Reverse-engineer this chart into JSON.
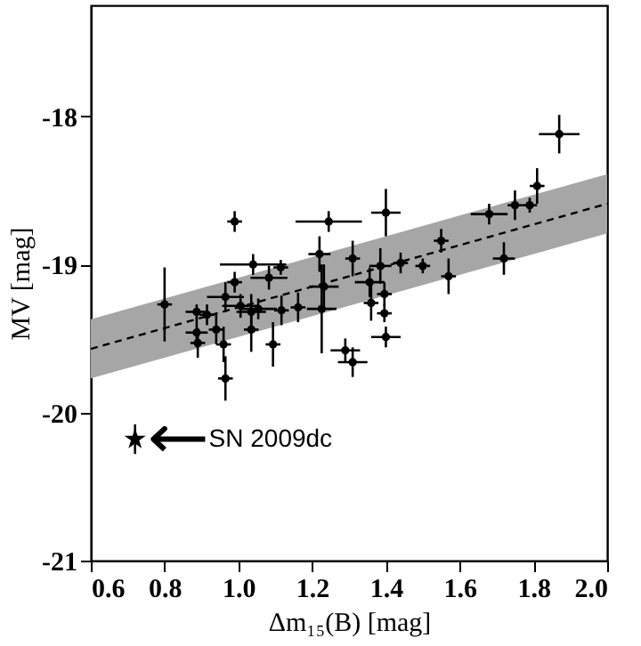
{
  "chart_data": {
    "type": "scatter",
    "xlabel": "Δm₁₅(B) [mag]",
    "ylabel": "MV [mag]",
    "xlim": [
      0.6,
      2.0
    ],
    "xticks": [
      0.6,
      0.8,
      {
        "value": 1,
        "label": "1.0"
      },
      1.2,
      1.4,
      1.6,
      1.8,
      {
        "value": 2,
        "label": "2.0"
      }
    ],
    "ylim": [
      -21,
      -17.25
    ],
    "yticks": [
      -21,
      -20,
      -19,
      -18
    ],
    "grid": false,
    "series": [
      {
        "type": "line",
        "color": "#000000",
        "line_style": "dashed",
        "marker": "none",
        "x": [
          0.6,
          2.0
        ],
        "values": [
          -19.57,
          -18.59
        ],
        "lower": [
          -19.77,
          -18.79
        ],
        "upper": [
          -19.37,
          -18.39
        ]
      },
      {
        "color": "#000000",
        "marker": "circle",
        "x": [
          1.87,
          1.81,
          1.75,
          1.79,
          1.68,
          1.72,
          1.55,
          1.57,
          1.5,
          1.44,
          1.4,
          1.245,
          0.99,
          1.385,
          1.22,
          1.31,
          1.04,
          1.115,
          0.8,
          0.887,
          0.915,
          0.887,
          0.89,
          0.94,
          0.96,
          0.965,
          0.965,
          0.99,
          1.035,
          1.035,
          1.054,
          1.083,
          1.117,
          1.094,
          1.162,
          1.232,
          1.226,
          1.29,
          1.31,
          1.356,
          1.36,
          1.396,
          1.4,
          1.396,
          1.006
        ],
        "values": [
          -18.12,
          -18.47,
          -18.6,
          -18.6,
          -18.66,
          -18.96,
          -18.84,
          -19.08,
          -19.01,
          -18.99,
          -18.65,
          -18.71,
          -18.71,
          -19.01,
          -18.93,
          -18.96,
          -19.0,
          -19.02,
          -19.27,
          -19.32,
          -19.34,
          -19.46,
          -19.53,
          -19.44,
          -19.54,
          -19.77,
          -19.22,
          -19.12,
          -19.32,
          -19.44,
          -19.3,
          -19.09,
          -19.31,
          -19.54,
          -19.29,
          -19.15,
          -19.3,
          -19.58,
          -19.66,
          -19.12,
          -19.26,
          -19.33,
          -19.49,
          -19.2,
          -19.28
        ],
        "errors": [
          0.13,
          0.12,
          0.1,
          0.05,
          0.07,
          0.11,
          0.08,
          0.12,
          0.05,
          0.07,
          0.16,
          0.07,
          0.07,
          0.12,
          0.12,
          0.12,
          0.07,
          0.05,
          0.25,
          0.05,
          0.07,
          0.1,
          0.1,
          0.1,
          0.12,
          0.15,
          0.1,
          0.07,
          0.12,
          0.15,
          0.07,
          0.08,
          0.1,
          0.15,
          0.1,
          0.15,
          0.3,
          0.08,
          0.1,
          0.1,
          0.12,
          0.06,
          0.07,
          0.08,
          0.08
        ],
        "xerrors": [
          0.055,
          0.02,
          0.02,
          0.02,
          0.05,
          0.03,
          0.02,
          0.02,
          0.02,
          0.02,
          0.04,
          0.09,
          0.02,
          0.03,
          0.03,
          0.02,
          0.09,
          0.02,
          0.02,
          0.03,
          0.02,
          0.03,
          0.02,
          0.02,
          0.02,
          0.02,
          0.05,
          0.02,
          0.04,
          0.02,
          0.05,
          0.05,
          0.02,
          0.02,
          0.02,
          0.04,
          0.04,
          0.04,
          0.04,
          0.04,
          0.02,
          0.02,
          0.04,
          0.02,
          0.05
        ]
      },
      {
        "color": "#000000",
        "marker": "star",
        "x": [
          0.72
        ],
        "values": [
          -20.18
        ],
        "errors": [
          0.1
        ]
      }
    ],
    "annotations": [
      {
        "text": "SN 2009dc",
        "x": 0.72,
        "y": -20.18
      }
    ]
  }
}
